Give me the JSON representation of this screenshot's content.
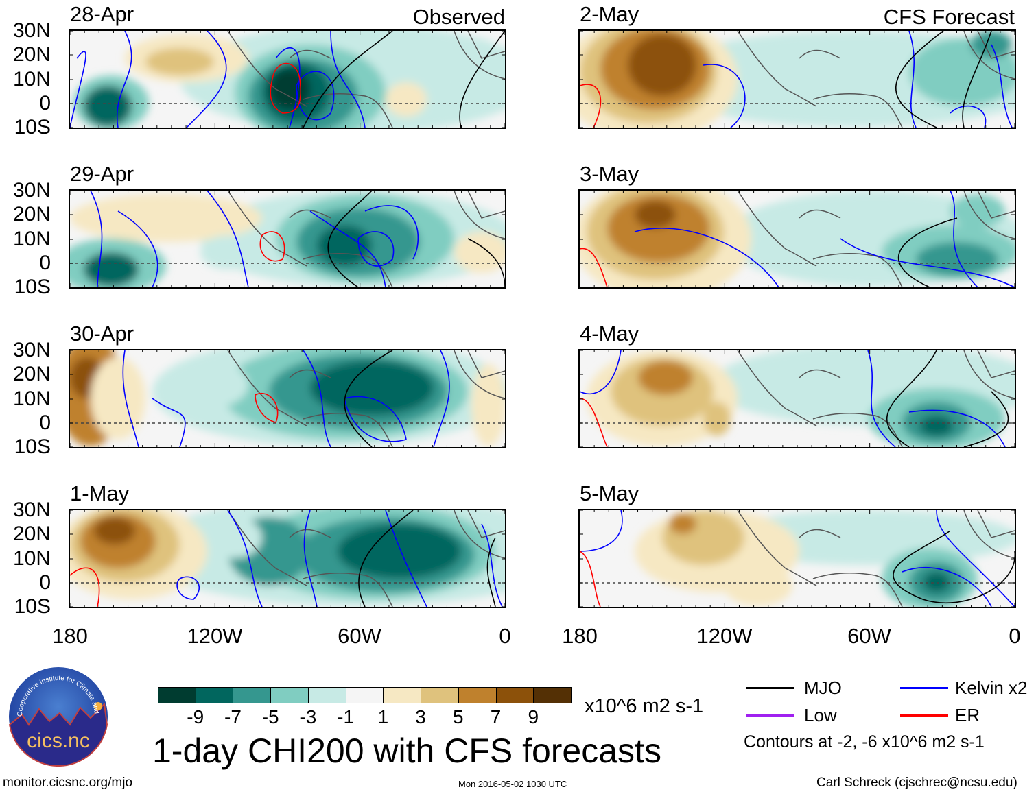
{
  "panels": [
    {
      "date": "28-Apr",
      "tag": "Observed"
    },
    {
      "date": "29-Apr"
    },
    {
      "date": "30-Apr"
    },
    {
      "date": "1-May"
    },
    {
      "date": "2-May",
      "tag": "CFS Forecast"
    },
    {
      "date": "3-May"
    },
    {
      "date": "4-May"
    },
    {
      "date": "5-May"
    }
  ],
  "lat_labels": [
    "30N",
    "20N",
    "10N",
    "0",
    "10S"
  ],
  "lon_labels": [
    "180",
    "120W",
    "60W",
    "0"
  ],
  "colorbar": {
    "colors": [
      "#003c30",
      "#01665e",
      "#35978f",
      "#80cdc1",
      "#c7eae5",
      "#f5f5f5",
      "#f6e8c3",
      "#dfc27d",
      "#bf812d",
      "#8c510a",
      "#543005"
    ],
    "labels": [
      "-9",
      "-7",
      "-5",
      "-3",
      "-1",
      "1",
      "3",
      "5",
      "7",
      "9"
    ],
    "units": "x10^6 m2 s-1"
  },
  "title": "1-day CHI200 with CFS forecasts",
  "legend": [
    {
      "label": "MJO",
      "color": "#000000"
    },
    {
      "label": "Kelvin x2",
      "color": "#0000ff"
    },
    {
      "label": "Low",
      "color": "#a020f0"
    },
    {
      "label": "ER",
      "color": "#ff0000"
    }
  ],
  "contour_note": "Contours at -2, -6 x10^6 m2 s-1",
  "logo_text": "cics.nc",
  "logo_ring_text": "Cooperative Institute for Climate and Satellites",
  "footer": {
    "left": "monitor.cicsnc.org/mjo",
    "center": "Mon 2016-05-02 1030 UTC",
    "right": "Carl Schreck (cjschrec@ncsu.edu)"
  }
}
